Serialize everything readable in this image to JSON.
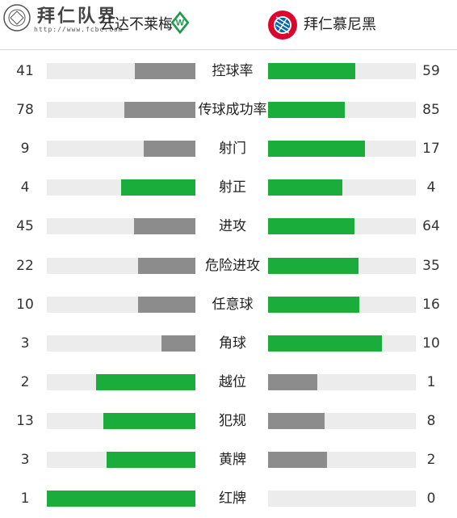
{
  "header": {
    "watermark_text": "拜仁队界",
    "watermark_url": "http://www.fcbc.com",
    "home_team": "云达不莱梅",
    "home_logo_icon": "werder-bremen-diamond-icon",
    "away_team": "拜仁慕尼黑",
    "away_logo_icon": "fc-bayern-crest-icon"
  },
  "colors": {
    "win": "#1aad3c",
    "lose": "#8c8c8c",
    "track": "#ececec"
  },
  "stats": [
    {
      "label": "控球率",
      "home": "41",
      "away": "59",
      "home_val": 41,
      "away_val": 59,
      "home_color": "lose",
      "away_color": "win"
    },
    {
      "label": "传球成功率",
      "home": "78",
      "away": "85",
      "home_val": 78,
      "away_val": 85,
      "home_color": "lose",
      "away_color": "win"
    },
    {
      "label": "射门",
      "home": "9",
      "away": "17",
      "home_val": 9,
      "away_val": 17,
      "home_color": "lose",
      "away_color": "win"
    },
    {
      "label": "射正",
      "home": "4",
      "away": "4",
      "home_val": 4,
      "away_val": 4,
      "home_color": "win",
      "away_color": "win"
    },
    {
      "label": "进攻",
      "home": "45",
      "away": "64",
      "home_val": 45,
      "away_val": 64,
      "home_color": "lose",
      "away_color": "win"
    },
    {
      "label": "危险进攻",
      "home": "22",
      "away": "35",
      "home_val": 22,
      "away_val": 35,
      "home_color": "lose",
      "away_color": "win"
    },
    {
      "label": "任意球",
      "home": "10",
      "away": "16",
      "home_val": 10,
      "away_val": 16,
      "home_color": "lose",
      "away_color": "win"
    },
    {
      "label": "角球",
      "home": "3",
      "away": "10",
      "home_val": 3,
      "away_val": 10,
      "home_color": "lose",
      "away_color": "win"
    },
    {
      "label": "越位",
      "home": "2",
      "away": "1",
      "home_val": 2,
      "away_val": 1,
      "home_color": "win",
      "away_color": "lose"
    },
    {
      "label": "犯规",
      "home": "13",
      "away": "8",
      "home_val": 13,
      "away_val": 8,
      "home_color": "win",
      "away_color": "lose"
    },
    {
      "label": "黄牌",
      "home": "3",
      "away": "2",
      "home_val": 3,
      "away_val": 2,
      "home_color": "win",
      "away_color": "lose"
    },
    {
      "label": "红牌",
      "home": "1",
      "away": "0",
      "home_val": 1,
      "away_val": 0,
      "home_color": "win",
      "away_color": "lose"
    }
  ]
}
